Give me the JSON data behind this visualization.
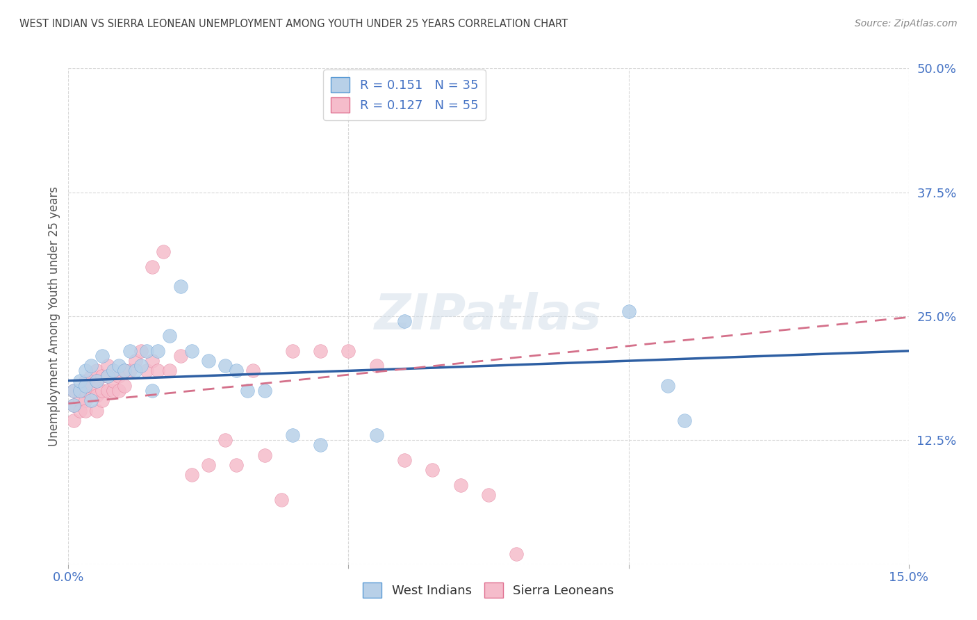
{
  "title": "WEST INDIAN VS SIERRA LEONEAN UNEMPLOYMENT AMONG YOUTH UNDER 25 YEARS CORRELATION CHART",
  "source": "Source: ZipAtlas.com",
  "ylabel": "Unemployment Among Youth under 25 years",
  "xlim": [
    0,
    0.15
  ],
  "ylim": [
    0,
    0.5
  ],
  "yticks": [
    0.0,
    0.125,
    0.25,
    0.375,
    0.5
  ],
  "yticklabels": [
    "",
    "12.5%",
    "25.0%",
    "37.5%",
    "50.0%"
  ],
  "background_color": "#ffffff",
  "grid_color": "#d8d8d8",
  "west_indian_color": "#b8d0e8",
  "sierra_leonean_color": "#f5bccb",
  "west_indian_edge_color": "#5b9bd5",
  "sierra_leonean_edge_color": "#e07090",
  "west_indian_line_color": "#2e5fa3",
  "sierra_leonean_line_color": "#d4708a",
  "title_color": "#404040",
  "axis_label_color": "#555555",
  "tick_color": "#4472c4",
  "legend_text_color": "#4472c4",
  "R_west": 0.151,
  "N_west": 35,
  "R_sierra": 0.127,
  "N_sierra": 55,
  "wi_intercept": 0.185,
  "wi_slope": 0.2,
  "sl_intercept": 0.162,
  "sl_slope": 0.58,
  "west_indians_x": [
    0.001,
    0.001,
    0.002,
    0.002,
    0.003,
    0.003,
    0.004,
    0.004,
    0.005,
    0.006,
    0.007,
    0.008,
    0.009,
    0.01,
    0.011,
    0.012,
    0.013,
    0.014,
    0.015,
    0.016,
    0.018,
    0.02,
    0.022,
    0.025,
    0.028,
    0.03,
    0.032,
    0.035,
    0.04,
    0.045,
    0.055,
    0.06,
    0.1,
    0.107,
    0.11
  ],
  "west_indians_y": [
    0.175,
    0.16,
    0.175,
    0.185,
    0.195,
    0.18,
    0.165,
    0.2,
    0.185,
    0.21,
    0.19,
    0.195,
    0.2,
    0.195,
    0.215,
    0.195,
    0.2,
    0.215,
    0.175,
    0.215,
    0.23,
    0.28,
    0.215,
    0.205,
    0.2,
    0.195,
    0.175,
    0.175,
    0.13,
    0.12,
    0.13,
    0.245,
    0.255,
    0.18,
    0.145
  ],
  "sierra_leoneans_x": [
    0.001,
    0.001,
    0.001,
    0.002,
    0.002,
    0.002,
    0.003,
    0.003,
    0.003,
    0.003,
    0.004,
    0.004,
    0.004,
    0.005,
    0.005,
    0.005,
    0.005,
    0.006,
    0.006,
    0.006,
    0.007,
    0.007,
    0.007,
    0.008,
    0.008,
    0.009,
    0.009,
    0.01,
    0.01,
    0.011,
    0.012,
    0.013,
    0.014,
    0.015,
    0.015,
    0.016,
    0.017,
    0.018,
    0.02,
    0.022,
    0.025,
    0.028,
    0.03,
    0.033,
    0.035,
    0.038,
    0.04,
    0.045,
    0.05,
    0.055,
    0.06,
    0.065,
    0.07,
    0.075,
    0.08
  ],
  "sierra_leoneans_y": [
    0.175,
    0.16,
    0.145,
    0.165,
    0.175,
    0.155,
    0.165,
    0.155,
    0.175,
    0.185,
    0.17,
    0.18,
    0.19,
    0.155,
    0.17,
    0.185,
    0.195,
    0.165,
    0.175,
    0.19,
    0.175,
    0.19,
    0.2,
    0.175,
    0.185,
    0.175,
    0.19,
    0.18,
    0.195,
    0.195,
    0.205,
    0.215,
    0.195,
    0.205,
    0.3,
    0.195,
    0.315,
    0.195,
    0.21,
    0.09,
    0.1,
    0.125,
    0.1,
    0.195,
    0.11,
    0.065,
    0.215,
    0.215,
    0.215,
    0.2,
    0.105,
    0.095,
    0.08,
    0.07,
    0.01
  ]
}
